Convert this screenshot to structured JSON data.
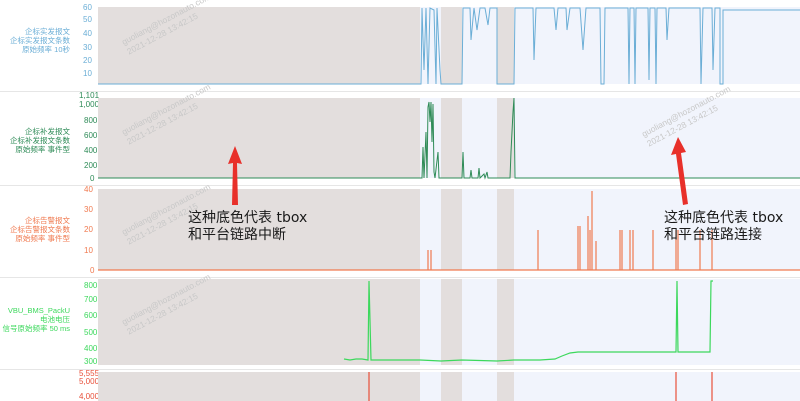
{
  "panels": [
    {
      "id": "p1",
      "label_lines": [
        "企标实发报文",
        "企标实发报文条数",
        "原始频率 10秒"
      ],
      "color": "#6baed6",
      "ticks": [
        "60",
        "50",
        "40",
        "30",
        "20",
        "10"
      ]
    },
    {
      "id": "p2",
      "label_lines": [
        "企标补发报文",
        "企标补发报文条数",
        "原始频率 事件型"
      ],
      "color": "#2e8b57",
      "ticks": [
        "1,101",
        "1,000",
        "800",
        "600",
        "400",
        "200",
        "0"
      ]
    },
    {
      "id": "p3",
      "label_lines": [
        "企标告警报文",
        "企标告警报文条数",
        "原始频率 事件型"
      ],
      "color": "#f07a50",
      "ticks": [
        "40",
        "30",
        "20",
        "10",
        "0"
      ]
    },
    {
      "id": "p4",
      "label_lines": [
        "VBU_BMS_PackU",
        "电池电压",
        "信号原始频率 50 ms"
      ],
      "color": "#3cd85c",
      "ticks": [
        "800",
        "700",
        "600",
        "500",
        "400",
        "300"
      ]
    },
    {
      "id": "p5",
      "label_lines": [],
      "color": "#e8503a",
      "ticks": [
        "5,555",
        "5,000",
        "4,000"
      ]
    }
  ],
  "annotations": {
    "left_line1": "这种底色代表 tbox",
    "left_line2": "和平台链路中断",
    "right_line1": "这种底色代表 tbox",
    "right_line2": "和平台链路连接"
  },
  "watermark": {
    "line1": "guoliang@hozonauto.com",
    "line2": "2021-12-28 13:42:15"
  },
  "colors": {
    "disconnected_bg": "#e3dedd",
    "connected_bg": "#f1f4fc",
    "arrow": "#e8302a"
  }
}
